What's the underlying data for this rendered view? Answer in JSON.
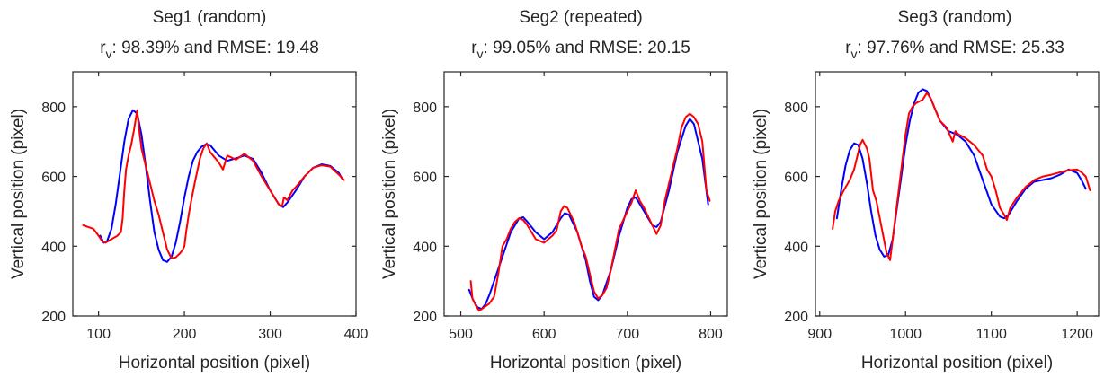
{
  "colors": {
    "blue": "#0000ff",
    "red": "#ff0000",
    "axis": "#262626"
  },
  "chart_data": [
    {
      "type": "line",
      "title_line1": "Seg1 (random)",
      "title_metric_prefix": "r",
      "title_metric_subscript": "v",
      "title_metric_rest": ": 98.39% and RMSE: 19.48",
      "xlabel": "Horizontal position (pixel)",
      "ylabel": "Vertical position (pixel)",
      "xlim": [
        70,
        400
      ],
      "ylim": [
        200,
        900
      ],
      "xticks": [
        100,
        200,
        300,
        400
      ],
      "xtick_labels": [
        "100",
        "200",
        "300",
        "400"
      ],
      "yticks": [
        200,
        400,
        600,
        800
      ],
      "ytick_labels": [
        "200",
        "400",
        "600",
        "800"
      ],
      "grid": false,
      "series": [
        {
          "color": "#0000ff",
          "x": [
            102,
            106,
            110,
            115,
            120,
            125,
            130,
            135,
            140,
            145,
            150,
            155,
            160,
            165,
            170,
            175,
            180,
            185,
            190,
            195,
            200,
            205,
            210,
            215,
            220,
            225,
            230,
            240,
            250,
            260,
            270,
            280,
            290,
            300,
            310,
            315,
            320,
            330,
            340,
            350,
            360,
            370,
            380,
            384
          ],
          "y": [
            430,
            410,
            415,
            450,
            520,
            610,
            700,
            765,
            790,
            780,
            720,
            630,
            530,
            440,
            390,
            360,
            355,
            370,
            410,
            470,
            540,
            600,
            645,
            670,
            685,
            692,
            690,
            660,
            645,
            652,
            660,
            650,
            610,
            560,
            520,
            512,
            525,
            560,
            600,
            625,
            635,
            630,
            610,
            593
          ]
        },
        {
          "color": "#ff0000",
          "x": [
            82,
            88,
            94,
            100,
            104,
            108,
            115,
            122,
            126,
            128,
            130,
            132,
            135,
            138,
            141,
            143,
            145,
            147,
            150,
            153,
            156,
            160,
            165,
            170,
            175,
            180,
            185,
            190,
            195,
            198,
            200,
            202,
            205,
            208,
            212,
            218,
            222,
            226,
            230,
            235,
            240,
            245,
            250,
            260,
            270,
            280,
            290,
            300,
            310,
            314,
            316,
            320,
            326,
            330,
            340,
            350,
            360,
            370,
            380,
            386
          ],
          "y": [
            460,
            455,
            450,
            430,
            415,
            410,
            420,
            430,
            440,
            480,
            560,
            620,
            660,
            690,
            730,
            760,
            790,
            740,
            680,
            650,
            620,
            580,
            530,
            490,
            440,
            390,
            365,
            368,
            380,
            390,
            400,
            440,
            490,
            530,
            580,
            650,
            680,
            695,
            670,
            655,
            640,
            620,
            660,
            648,
            665,
            645,
            600,
            560,
            520,
            515,
            540,
            532,
            560,
            570,
            600,
            625,
            632,
            628,
            605,
            590
          ]
        }
      ]
    },
    {
      "type": "line",
      "title_line1": "Seg2 (repeated)",
      "title_metric_prefix": "r",
      "title_metric_subscript": "v",
      "title_metric_rest": ": 99.05% and RMSE: 20.15",
      "xlabel": "Horizontal position (pixel)",
      "ylabel": "Vertical position (pixel)",
      "xlim": [
        480,
        820
      ],
      "ylim": [
        200,
        900
      ],
      "xticks": [
        500,
        600,
        700,
        800
      ],
      "xtick_labels": [
        "500",
        "600",
        "700",
        "800"
      ],
      "yticks": [
        200,
        400,
        600,
        800
      ],
      "ytick_labels": [
        "200",
        "400",
        "600",
        "800"
      ],
      "grid": false,
      "series": [
        {
          "color": "#0000ff",
          "x": [
            510,
            515,
            520,
            525,
            530,
            535,
            540,
            550,
            560,
            570,
            575,
            580,
            590,
            600,
            610,
            620,
            625,
            630,
            640,
            650,
            655,
            660,
            665,
            670,
            680,
            690,
            700,
            705,
            710,
            720,
            730,
            735,
            740,
            750,
            760,
            770,
            775,
            780,
            790,
            797
          ],
          "y": [
            275,
            245,
            225,
            220,
            235,
            265,
            300,
            370,
            440,
            480,
            483,
            470,
            440,
            420,
            440,
            480,
            495,
            490,
            440,
            360,
            300,
            255,
            245,
            260,
            330,
            430,
            510,
            535,
            540,
            500,
            460,
            455,
            470,
            560,
            670,
            745,
            765,
            750,
            650,
            520
          ]
        },
        {
          "color": "#ff0000",
          "x": [
            512,
            514,
            518,
            522,
            528,
            534,
            540,
            545,
            550,
            555,
            560,
            565,
            570,
            575,
            580,
            590,
            600,
            610,
            615,
            620,
            624,
            628,
            632,
            636,
            640,
            645,
            650,
            655,
            660,
            665,
            670,
            675,
            680,
            690,
            700,
            705,
            710,
            715,
            720,
            730,
            735,
            740,
            745,
            750,
            760,
            765,
            770,
            775,
            780,
            785,
            790,
            795,
            799
          ],
          "y": [
            300,
            250,
            230,
            215,
            225,
            235,
            255,
            320,
            400,
            420,
            450,
            470,
            480,
            475,
            460,
            420,
            410,
            430,
            445,
            500,
            515,
            510,
            490,
            470,
            440,
            400,
            370,
            320,
            270,
            250,
            260,
            280,
            330,
            450,
            500,
            525,
            560,
            530,
            510,
            460,
            435,
            460,
            530,
            580,
            680,
            740,
            770,
            780,
            770,
            750,
            700,
            560,
            530
          ]
        }
      ]
    },
    {
      "type": "line",
      "title_line1": "Seg3 (random)",
      "title_metric_prefix": "r",
      "title_metric_subscript": "v",
      "title_metric_rest": ": 97.76% and RMSE: 25.33",
      "xlabel": "Horizontal position (pixel)",
      "ylabel": "Vertical position (pixel)",
      "xlim": [
        895,
        1225
      ],
      "ylim": [
        200,
        900
      ],
      "xticks": [
        900,
        1000,
        1100,
        1200
      ],
      "xtick_labels": [
        "900",
        "1000",
        "1100",
        "1200"
      ],
      "yticks": [
        200,
        400,
        600,
        800
      ],
      "ytick_labels": [
        "200",
        "400",
        "600",
        "800"
      ],
      "grid": false,
      "series": [
        {
          "color": "#0000ff",
          "x": [
            920,
            925,
            930,
            935,
            940,
            945,
            950,
            955,
            960,
            965,
            970,
            975,
            980,
            985,
            990,
            995,
            1000,
            1005,
            1010,
            1015,
            1020,
            1025,
            1030,
            1035,
            1040,
            1050,
            1060,
            1070,
            1080,
            1090,
            1100,
            1110,
            1115,
            1120,
            1130,
            1140,
            1150,
            1160,
            1170,
            1180,
            1190,
            1200,
            1205,
            1210
          ],
          "y": [
            480,
            560,
            630,
            675,
            695,
            690,
            650,
            580,
            500,
            430,
            390,
            370,
            375,
            420,
            510,
            600,
            690,
            760,
            810,
            840,
            850,
            845,
            820,
            790,
            760,
            730,
            720,
            700,
            660,
            590,
            520,
            485,
            480,
            490,
            530,
            565,
            585,
            590,
            595,
            605,
            620,
            610,
            590,
            565
          ]
        },
        {
          "color": "#ff0000",
          "x": [
            915,
            918,
            922,
            928,
            935,
            940,
            944,
            947,
            950,
            955,
            958,
            962,
            966,
            970,
            974,
            978,
            980,
            982,
            984,
            988,
            992,
            996,
            1000,
            1004,
            1008,
            1012,
            1016,
            1020,
            1025,
            1030,
            1035,
            1040,
            1048,
            1055,
            1058,
            1062,
            1070,
            1080,
            1090,
            1095,
            1100,
            1105,
            1110,
            1115,
            1118,
            1122,
            1130,
            1140,
            1150,
            1160,
            1170,
            1180,
            1190,
            1200,
            1205,
            1210,
            1215
          ],
          "y": [
            450,
            500,
            530,
            560,
            590,
            620,
            660,
            690,
            705,
            680,
            650,
            560,
            530,
            480,
            430,
            380,
            370,
            360,
            400,
            480,
            560,
            640,
            720,
            780,
            800,
            810,
            815,
            820,
            840,
            820,
            790,
            760,
            740,
            700,
            730,
            720,
            710,
            690,
            660,
            620,
            600,
            560,
            510,
            490,
            475,
            510,
            540,
            570,
            590,
            600,
            605,
            612,
            618,
            620,
            612,
            600,
            560
          ]
        }
      ]
    }
  ]
}
